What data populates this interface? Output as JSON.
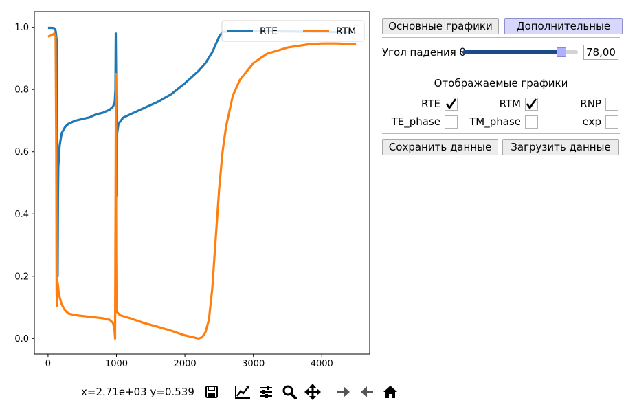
{
  "chart_data": {
    "type": "line",
    "xlim": [
      -200,
      4700
    ],
    "ylim": [
      -0.05,
      1.05
    ],
    "x_ticks": [
      "0",
      "1000",
      "2000",
      "3000",
      "4000"
    ],
    "y_ticks": [
      "0.0",
      "0.2",
      "0.4",
      "0.6",
      "0.8",
      "1.0"
    ],
    "legend_placement": "upper-right",
    "series": [
      {
        "name": "RTE",
        "color": "#1f77b4",
        "points": [
          [
            0,
            0.998
          ],
          [
            60,
            0.998
          ],
          [
            90,
            0.997
          ],
          [
            110,
            0.99
          ],
          [
            125,
            0.96
          ],
          [
            133,
            0.55
          ],
          [
            140,
            0.2
          ],
          [
            145,
            0.45
          ],
          [
            150,
            0.55
          ],
          [
            170,
            0.62
          ],
          [
            200,
            0.66
          ],
          [
            250,
            0.68
          ],
          [
            300,
            0.69
          ],
          [
            400,
            0.7
          ],
          [
            500,
            0.705
          ],
          [
            600,
            0.71
          ],
          [
            700,
            0.72
          ],
          [
            800,
            0.725
          ],
          [
            900,
            0.735
          ],
          [
            950,
            0.745
          ],
          [
            975,
            0.76
          ],
          [
            985,
            0.8
          ],
          [
            990,
            0.98
          ],
          [
            995,
            0.85
          ],
          [
            1000,
            0.69
          ],
          [
            1005,
            0.46
          ],
          [
            1010,
            0.66
          ],
          [
            1030,
            0.69
          ],
          [
            1100,
            0.71
          ],
          [
            1200,
            0.72
          ],
          [
            1400,
            0.74
          ],
          [
            1600,
            0.76
          ],
          [
            1800,
            0.785
          ],
          [
            2000,
            0.82
          ],
          [
            2200,
            0.86
          ],
          [
            2300,
            0.885
          ],
          [
            2400,
            0.92
          ],
          [
            2450,
            0.945
          ],
          [
            2500,
            0.97
          ],
          [
            2550,
            0.985
          ],
          [
            2700,
            0.988
          ],
          [
            3000,
            0.988
          ],
          [
            4000,
            0.985
          ],
          [
            4500,
            0.983
          ]
        ]
      },
      {
        "name": "RTM",
        "color": "#ff7f0e",
        "points": [
          [
            0,
            0.97
          ],
          [
            60,
            0.975
          ],
          [
            90,
            0.98
          ],
          [
            110,
            0.97
          ],
          [
            120,
            0.6
          ],
          [
            125,
            0.15
          ],
          [
            130,
            0.105
          ],
          [
            135,
            0.15
          ],
          [
            140,
            0.18
          ],
          [
            160,
            0.14
          ],
          [
            200,
            0.11
          ],
          [
            250,
            0.09
          ],
          [
            300,
            0.08
          ],
          [
            400,
            0.075
          ],
          [
            600,
            0.07
          ],
          [
            800,
            0.065
          ],
          [
            900,
            0.06
          ],
          [
            950,
            0.05
          ],
          [
            970,
            0.03
          ],
          [
            980,
            0.0
          ],
          [
            988,
            0.5
          ],
          [
            992,
            0.85
          ],
          [
            996,
            0.3
          ],
          [
            1000,
            0.12
          ],
          [
            1010,
            0.085
          ],
          [
            1050,
            0.075
          ],
          [
            1200,
            0.065
          ],
          [
            1400,
            0.05
          ],
          [
            1600,
            0.038
          ],
          [
            1800,
            0.025
          ],
          [
            2000,
            0.01
          ],
          [
            2100,
            0.005
          ],
          [
            2200,
            0.0
          ],
          [
            2250,
            0.004
          ],
          [
            2300,
            0.02
          ],
          [
            2350,
            0.06
          ],
          [
            2400,
            0.16
          ],
          [
            2450,
            0.32
          ],
          [
            2500,
            0.48
          ],
          [
            2550,
            0.6
          ],
          [
            2600,
            0.68
          ],
          [
            2700,
            0.78
          ],
          [
            2800,
            0.83
          ],
          [
            3000,
            0.885
          ],
          [
            3200,
            0.915
          ],
          [
            3500,
            0.935
          ],
          [
            3800,
            0.945
          ],
          [
            4000,
            0.948
          ],
          [
            4200,
            0.948
          ],
          [
            4500,
            0.946
          ]
        ]
      }
    ]
  },
  "toolbar": {
    "coords": "x=2.71e+03 y=0.539",
    "buttons": [
      "save-icon",
      "edit-axis-icon",
      "configure-subplots-icon",
      "zoom-icon",
      "pan-icon",
      "forward-icon",
      "back-icon",
      "home-icon"
    ]
  },
  "panel": {
    "tab_main": "Основные графики",
    "tab_extra": "Дополнительные",
    "angle_label": "Угол падения θ",
    "angle_value": "78,00",
    "angle_slider_fraction": 0.87,
    "graphs_heading": "Отображаемые графики",
    "checkboxes": [
      {
        "label": "RTE",
        "checked": true
      },
      {
        "label": "RTM",
        "checked": true
      },
      {
        "label": "RNP",
        "checked": false
      },
      {
        "label": "TE_phase",
        "checked": false
      },
      {
        "label": "TM_phase",
        "checked": false
      },
      {
        "label": "exp",
        "checked": false
      }
    ],
    "save_button": "Сохранить данные",
    "load_button": "Загрузить данные"
  },
  "colors": {
    "accent_button": "#d7d7fb",
    "slider_fill": "#1a4a8a",
    "slider_handle": "#b0b0ff"
  }
}
